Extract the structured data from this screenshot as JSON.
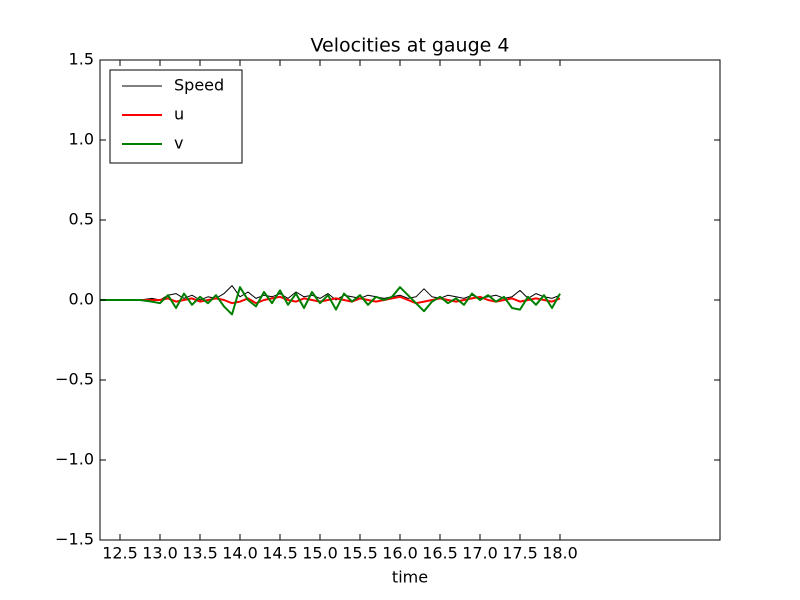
{
  "chart_data": {
    "type": "line",
    "title": "Velocities at gauge 4",
    "x_label": "time",
    "x": [
      12.25,
      12.5,
      12.75,
      12.9,
      13.0,
      13.1,
      13.2,
      13.3,
      13.4,
      13.5,
      13.6,
      13.7,
      13.8,
      13.9,
      14.0,
      14.1,
      14.2,
      14.3,
      14.4,
      14.5,
      14.6,
      14.7,
      14.8,
      14.9,
      15.0,
      15.1,
      15.2,
      15.3,
      15.4,
      15.5,
      15.6,
      15.7,
      15.8,
      15.9,
      16.0,
      16.1,
      16.2,
      16.3,
      16.4,
      16.5,
      16.6,
      16.7,
      16.8,
      16.9,
      17.0,
      17.1,
      17.2,
      17.3,
      17.4,
      17.5,
      17.6,
      17.7,
      17.8,
      17.9,
      18.0
    ],
    "series": [
      {
        "name": "Speed",
        "color": "#000000",
        "width": 1,
        "values": [
          0,
          0,
          0,
          0.01,
          0.0,
          0.03,
          0.04,
          0.01,
          0.03,
          0.0,
          0.02,
          0.01,
          0.04,
          0.09,
          0.02,
          0.05,
          0.01,
          0.03,
          0.02,
          0.04,
          0.01,
          0.05,
          0.02,
          0.03,
          0.01,
          0.04,
          0.0,
          0.03,
          0.02,
          0.01,
          0.03,
          0.02,
          0.01,
          0.02,
          0.03,
          0.01,
          0.02,
          0.07,
          0.02,
          0.01,
          0.03,
          0.02,
          0.01,
          0.03,
          0.01,
          0.02,
          0.03,
          0.01,
          0.02,
          0.06,
          0.01,
          0.04,
          0.02,
          0.01,
          0.03
        ]
      },
      {
        "name": "u",
        "color": "#ff0000",
        "width": 2,
        "values": [
          0,
          0,
          0,
          0,
          0.0,
          0.01,
          -0.01,
          0.0,
          0.01,
          -0.01,
          0.0,
          0.01,
          0.0,
          -0.02,
          -0.01,
          0.01,
          -0.02,
          0.0,
          0.01,
          0.02,
          0.0,
          -0.01,
          0.01,
          0.0,
          -0.01,
          0.0,
          0.01,
          0.0,
          -0.01,
          0.01,
          0.0,
          -0.01,
          0.0,
          0.01,
          0.02,
          0.0,
          -0.02,
          -0.01,
          0.0,
          0.01,
          0.0,
          -0.01,
          0.0,
          0.01,
          0.02,
          0.0,
          -0.01,
          0.0,
          0.01,
          -0.01,
          0.0,
          0.01,
          0.0,
          -0.01,
          0.01
        ]
      },
      {
        "name": "v",
        "color": "#008000",
        "width": 2,
        "values": [
          0,
          0,
          0,
          -0.01,
          -0.02,
          0.03,
          -0.05,
          0.04,
          -0.03,
          0.02,
          -0.02,
          0.03,
          -0.04,
          -0.09,
          0.08,
          0.0,
          -0.04,
          0.05,
          -0.02,
          0.06,
          -0.03,
          0.04,
          -0.05,
          0.05,
          -0.02,
          0.03,
          -0.06,
          0.04,
          -0.01,
          0.03,
          -0.03,
          0.02,
          0.0,
          0.02,
          0.08,
          0.03,
          -0.02,
          -0.07,
          -0.01,
          0.02,
          -0.02,
          0.01,
          -0.03,
          0.04,
          0.0,
          0.03,
          -0.01,
          0.02,
          -0.05,
          -0.06,
          0.02,
          -0.03,
          0.03,
          -0.05,
          0.04
        ]
      }
    ],
    "xlim": [
      12.25,
      20.0
    ],
    "xticks": [
      12.5,
      {
        "value": 13,
        "label": "13.0"
      },
      13.5,
      {
        "value": 14,
        "label": "14.0"
      },
      14.5,
      {
        "value": 15,
        "label": "15.0"
      },
      15.5,
      {
        "value": 16,
        "label": "16.0"
      },
      16.5,
      {
        "value": 17,
        "label": "17.0"
      },
      17.5,
      {
        "value": 18,
        "label": "18.0"
      }
    ],
    "ylim": [
      -1.5,
      1.5
    ],
    "yticks": [
      {
        "value": -1.5,
        "label": "−1.5"
      },
      {
        "value": -1,
        "label": "−1.0"
      },
      {
        "value": -0.5,
        "label": "−0.5"
      },
      {
        "value": 0,
        "label": "0.0"
      },
      0.5,
      {
        "value": 1,
        "label": "1.0"
      },
      1.5
    ],
    "legend": "upper left",
    "grid": false
  }
}
